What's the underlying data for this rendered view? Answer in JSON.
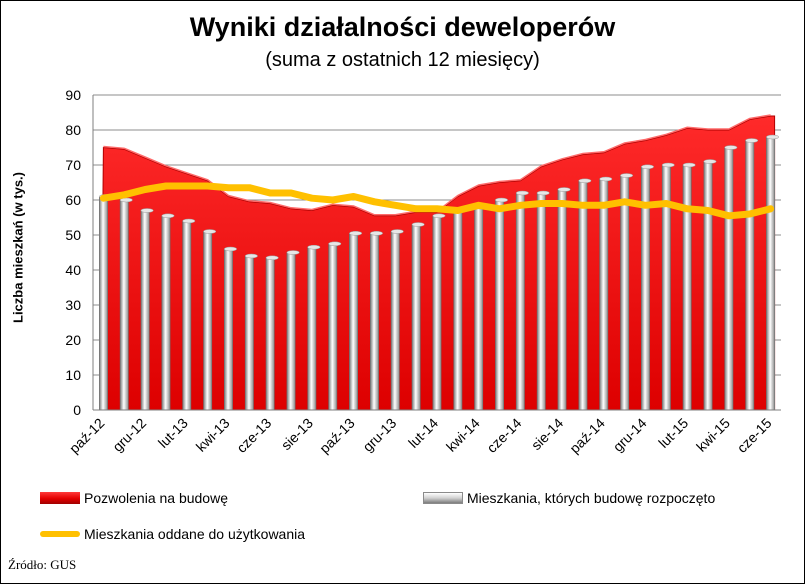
{
  "chart_data": {
    "type": "area-bar-line",
    "title": "Wyniki działalności deweloperów",
    "subtitle": "(suma z ostatnich 12 miesięcy)",
    "ylabel": "Liczba mieszkań (w tys.)",
    "xlabel": "",
    "ylim": [
      0,
      90
    ],
    "yticks": [
      0,
      10,
      20,
      30,
      40,
      50,
      60,
      70,
      80,
      90
    ],
    "categories": [
      "paź-12",
      "lis-12",
      "gru-12",
      "sty-13",
      "lut-13",
      "mar-13",
      "kwi-13",
      "maj-13",
      "cze-13",
      "lip-13",
      "sie-13",
      "wrz-13",
      "paź-13",
      "lis-13",
      "gru-13",
      "sty-14",
      "lut-14",
      "mar-14",
      "kwi-14",
      "maj-14",
      "cze-14",
      "lip-14",
      "sie-14",
      "wrz-14",
      "paź-14",
      "lis-14",
      "gru-14",
      "sty-15",
      "lut-15",
      "mar-15",
      "kwi-15",
      "maj-15",
      "cze-15"
    ],
    "x_tick_labels": [
      "paź-12",
      "gru-12",
      "lut-13",
      "kwi-13",
      "cze-13",
      "sie-13",
      "paź-13",
      "gru-13",
      "lut-14",
      "kwi-14",
      "cze-14",
      "sie-14",
      "paź-14",
      "gru-14",
      "lut-15",
      "kwi-15",
      "cze-15"
    ],
    "series": [
      {
        "name": "Pozwolenia na budowę",
        "kind": "area",
        "color": "#e60000",
        "values": [
          75,
          74.5,
          72,
          69.5,
          67.5,
          65.5,
          61,
          59.5,
          59,
          57.5,
          57,
          58.5,
          58,
          55.5,
          55.5,
          56.5,
          56.5,
          61,
          64,
          65,
          65.5,
          69.5,
          71.5,
          73,
          73.5,
          76,
          77,
          78.5,
          80.5,
          80,
          80,
          83,
          84
        ]
      },
      {
        "name": "Mieszkania, których budowę rozpoczęto",
        "kind": "bar",
        "color": "#c8c8c8",
        "values": [
          61,
          60,
          57,
          55.5,
          54,
          51,
          46,
          44,
          43.5,
          45,
          46.5,
          47.5,
          50.5,
          50.5,
          51,
          53,
          55.5,
          57,
          58,
          60,
          62,
          62,
          63,
          65.5,
          66,
          67,
          69.5,
          70,
          70,
          71,
          75,
          77,
          78
        ]
      },
      {
        "name": "Mieszkania oddane do użytkowania",
        "kind": "line",
        "color": "#ffc000",
        "values": [
          60.5,
          61.5,
          63,
          64,
          64,
          64,
          63.5,
          63.5,
          62,
          62,
          60.5,
          60,
          61,
          59.5,
          58.5,
          57.5,
          57.5,
          57,
          58.5,
          57.5,
          58.5,
          59,
          59,
          58.5,
          58.5,
          59.5,
          58.5,
          59,
          57.5,
          57,
          55.5,
          56,
          57.5
        ]
      }
    ]
  },
  "legend": {
    "area_label": "Pozwolenia na budowę",
    "bar_label": "Mieszkania, których budowę rozpoczęto",
    "line_label": "Mieszkania oddane do użytkowania"
  },
  "source": "Źródło: GUS"
}
